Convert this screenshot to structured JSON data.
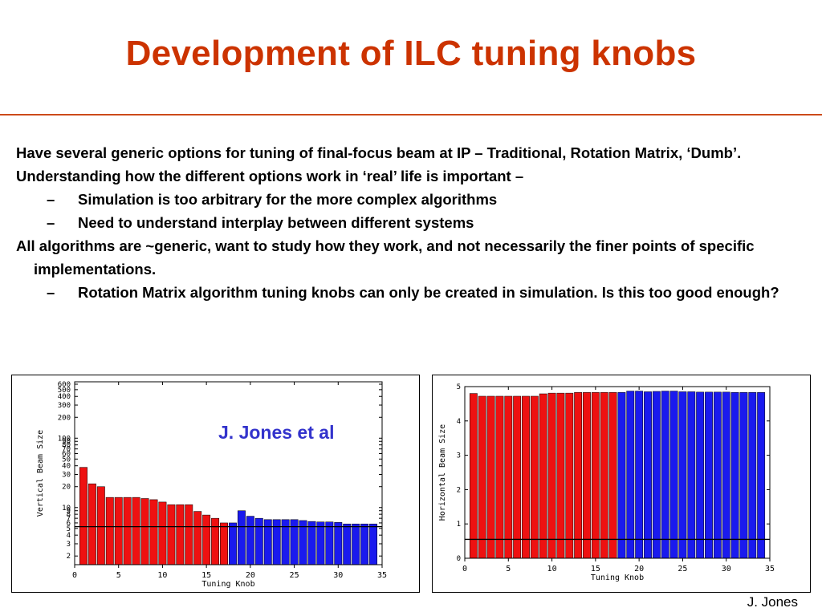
{
  "slide": {
    "title": "Development of ILC tuning knobs",
    "author": "J. Jones",
    "annotation": "J. Jones et al"
  },
  "bullets": [
    {
      "level": 1,
      "text": "Have several generic options for tuning of final-focus beam at IP – Traditional, Rotation Matrix, ‘Dumb’."
    },
    {
      "level": 1,
      "text": "Understanding how the different options work in ‘real’ life is important –"
    },
    {
      "level": 2,
      "text": "Simulation is too arbitrary for the more complex algorithms"
    },
    {
      "level": 2,
      "text": "Need to understand interplay between different systems"
    },
    {
      "level": 1,
      "text": "All algorithms are ~generic, want to study how they work, and not necessarily the finer points of specific implementations."
    },
    {
      "level": 2,
      "text": "Rotation Matrix algorithm tuning knobs can only be created in simulation. Is this too good enough?"
    }
  ],
  "colors": {
    "title": "#cc3300",
    "red_bars": "#ee1111",
    "blue_bars": "#1a1aee",
    "annotation": "#3333cc"
  },
  "chart_data": [
    {
      "type": "bar",
      "scale": "log",
      "xlabel": "Tuning Knob",
      "ylabel": "Vertical Beam Size",
      "xlim": [
        0,
        35
      ],
      "ylim": [
        1.5,
        650
      ],
      "xticks": [
        0,
        5,
        10,
        15,
        20,
        25,
        30,
        35
      ],
      "yticks": [
        2,
        3,
        5,
        7,
        10,
        20,
        30,
        50,
        70,
        100,
        200,
        300,
        500,
        600
      ],
      "yticks_shown": [
        2,
        3,
        4,
        5,
        6,
        7,
        8,
        9,
        10,
        20,
        30,
        40,
        50,
        60,
        70,
        80,
        90,
        100,
        200,
        300,
        400,
        500,
        600
      ],
      "reference_line": 5.3,
      "x": [
        1,
        2,
        3,
        4,
        5,
        6,
        7,
        8,
        9,
        10,
        11,
        12,
        13,
        14,
        15,
        16,
        17,
        18,
        19,
        20,
        21,
        22,
        23,
        24,
        25,
        26,
        27,
        28,
        29,
        30,
        31,
        32,
        33,
        34
      ],
      "values": [
        38,
        22,
        20,
        14,
        14,
        14,
        14,
        13.5,
        13,
        12,
        11,
        11,
        11,
        8.8,
        7.8,
        7,
        6,
        6,
        9,
        7.5,
        7,
        6.7,
        6.7,
        6.7,
        6.7,
        6.5,
        6.3,
        6.2,
        6.2,
        6.1,
        5.8,
        5.8,
        5.8,
        5.8
      ],
      "colors": [
        "red",
        "red",
        "red",
        "red",
        "red",
        "red",
        "red",
        "red",
        "red",
        "red",
        "red",
        "red",
        "red",
        "red",
        "red",
        "red",
        "red",
        "blue",
        "blue",
        "blue",
        "blue",
        "blue",
        "blue",
        "blue",
        "blue",
        "blue",
        "blue",
        "blue",
        "blue",
        "blue",
        "blue",
        "blue",
        "blue",
        "blue"
      ]
    },
    {
      "type": "bar",
      "scale": "linear",
      "xlabel": "Tuning Knob",
      "ylabel": "Horizontal Beam Size",
      "xlim": [
        0,
        35
      ],
      "ylim": [
        0,
        5
      ],
      "xticks": [
        0,
        5,
        10,
        15,
        20,
        25,
        30,
        35
      ],
      "yticks": [
        0,
        1,
        2,
        3,
        4,
        5
      ],
      "reference_line": 0.55,
      "x": [
        1,
        2,
        3,
        4,
        5,
        6,
        7,
        8,
        9,
        10,
        11,
        12,
        13,
        14,
        15,
        16,
        17,
        18,
        19,
        20,
        21,
        22,
        23,
        24,
        25,
        26,
        27,
        28,
        29,
        30,
        31,
        32,
        33,
        34
      ],
      "values": [
        4.8,
        4.72,
        4.72,
        4.72,
        4.72,
        4.72,
        4.72,
        4.72,
        4.79,
        4.81,
        4.81,
        4.81,
        4.83,
        4.83,
        4.83,
        4.83,
        4.83,
        4.83,
        4.87,
        4.87,
        4.85,
        4.86,
        4.87,
        4.87,
        4.85,
        4.85,
        4.84,
        4.84,
        4.84,
        4.84,
        4.83,
        4.83,
        4.83,
        4.83
      ],
      "colors": [
        "red",
        "red",
        "red",
        "red",
        "red",
        "red",
        "red",
        "red",
        "red",
        "red",
        "red",
        "red",
        "red",
        "red",
        "red",
        "red",
        "red",
        "blue",
        "blue",
        "blue",
        "blue",
        "blue",
        "blue",
        "blue",
        "blue",
        "blue",
        "blue",
        "blue",
        "blue",
        "blue",
        "blue",
        "blue",
        "blue",
        "blue"
      ]
    }
  ]
}
